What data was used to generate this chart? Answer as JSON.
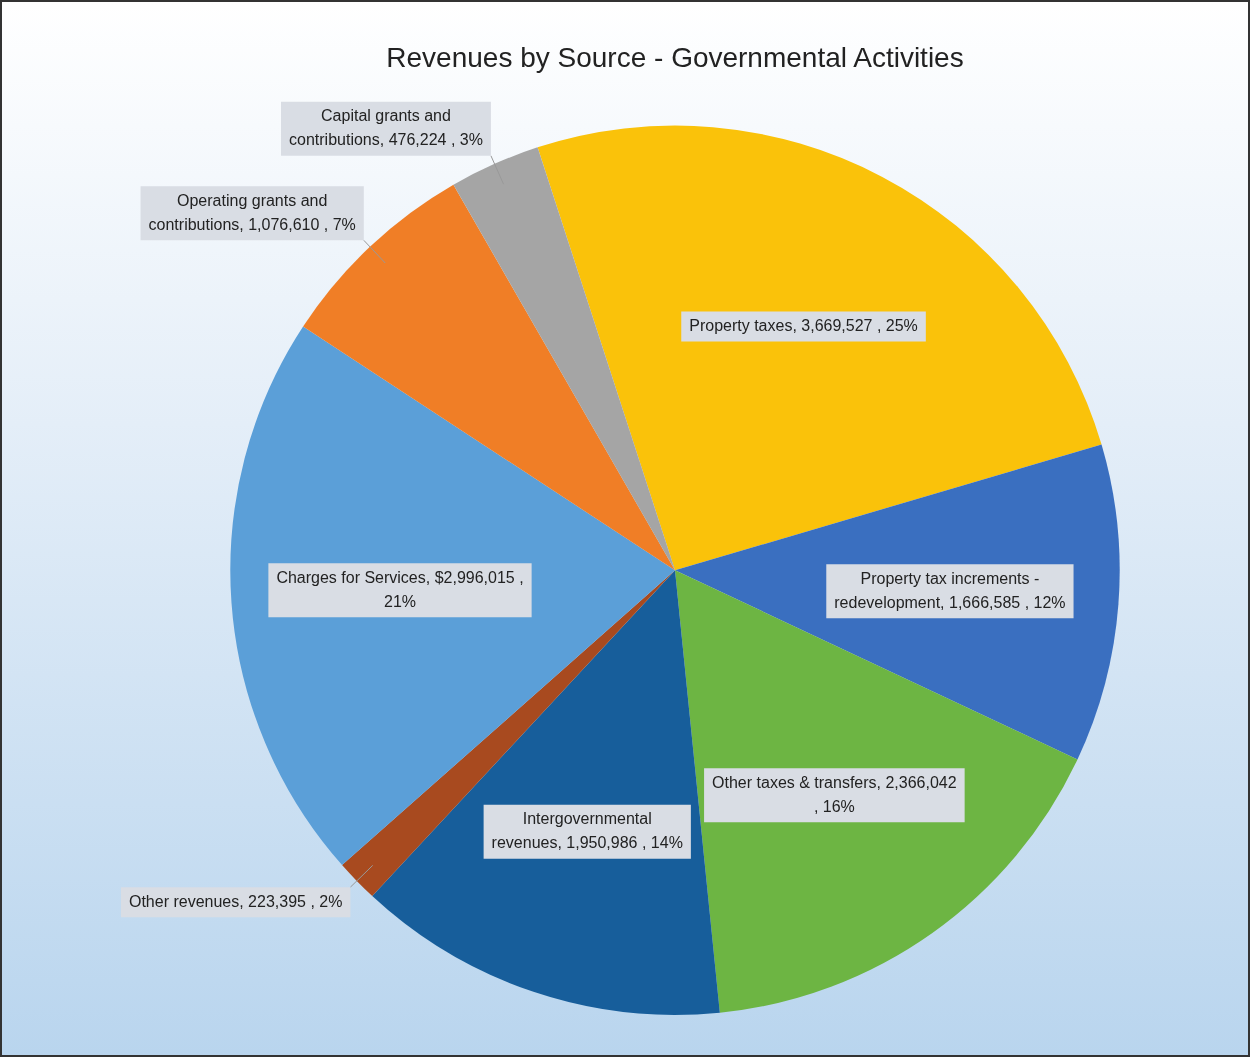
{
  "chart_data": {
    "type": "pie",
    "title": "Revenues by Source - Governmental Activities",
    "categories": [
      "Property taxes",
      "Property tax increments - redevelopment",
      "Other taxes & transfers",
      "Intergovernmental revenues",
      "Other revenues",
      "Charges for Services",
      "Operating grants and contributions",
      "Capital grants and contributions"
    ],
    "values": [
      3669527,
      1666585,
      2366042,
      1950986,
      223395,
      2996015,
      1076610,
      476224
    ],
    "colors": [
      "#fac20a",
      "#3a6fc0",
      "#6db543",
      "#175e9b",
      "#a84a1f",
      "#5b9fd8",
      "#f07e26",
      "#a5a5a5"
    ],
    "value_labels": [
      "3,669,527 , 25%",
      "1,666,585 , 12%",
      "2,366,042 , 16%",
      "1,950,986 , 14%",
      "223,395 , 2%",
      "$2,996,015 , 21%",
      "1,076,610 , 7%",
      "476,224 , 3%"
    ],
    "legend": false
  }
}
